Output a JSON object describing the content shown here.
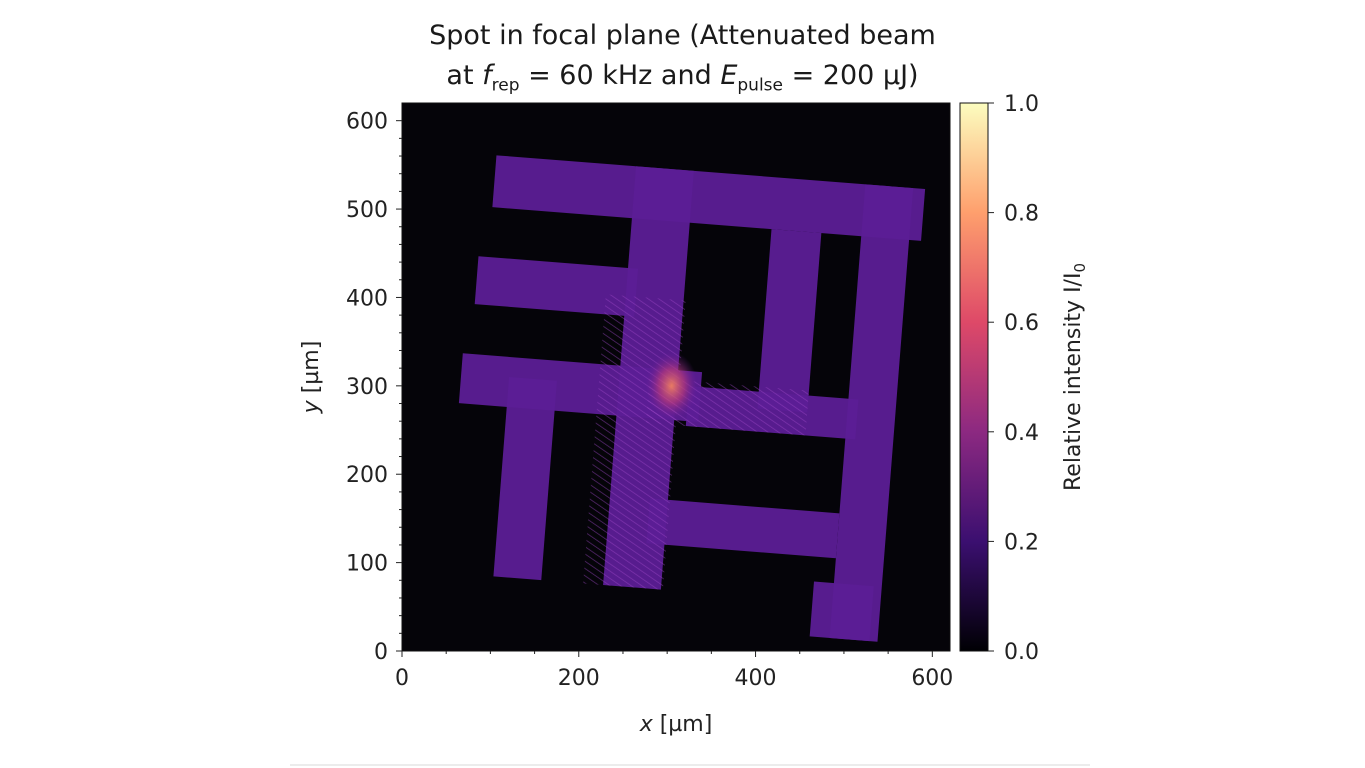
{
  "chart_data": {
    "type": "heatmap",
    "title": {
      "line1": "Spot in focal plane (Attenuated beam",
      "line2_prefix": "at ",
      "frep_symbol": "f",
      "frep_sub": "rep",
      "frep_value": " = 60 kHz and ",
      "epulse_symbol": "E",
      "epulse_sub": "pulse",
      "epulse_value": " = 200 µJ)"
    },
    "xlabel": {
      "var": "x",
      "unit": " [µm]"
    },
    "ylabel": {
      "var": "y",
      "unit": " [µm]"
    },
    "xlim": [
      0,
      620
    ],
    "ylim": [
      0,
      620
    ],
    "xticks": [
      "0",
      "200",
      "400",
      "600"
    ],
    "yticks": [
      "0",
      "100",
      "200",
      "300",
      "400",
      "500",
      "600"
    ],
    "colorbar": {
      "label": "Relative intensity I/I",
      "label_sub": "0",
      "range": [
        0.0,
        1.0
      ],
      "ticks": [
        "0.0",
        "0.2",
        "0.4",
        "0.6",
        "0.8",
        "1.0"
      ],
      "colormap": "magma",
      "colors": [
        "#000004",
        "#3b0f70",
        "#8c2981",
        "#de4968",
        "#fe9f6d",
        "#fcfdbf"
      ]
    },
    "background_intensity": 0.0,
    "pattern_intensity": 0.35,
    "hotspot": {
      "x": 305,
      "y": 300,
      "intensity": 0.65
    }
  }
}
